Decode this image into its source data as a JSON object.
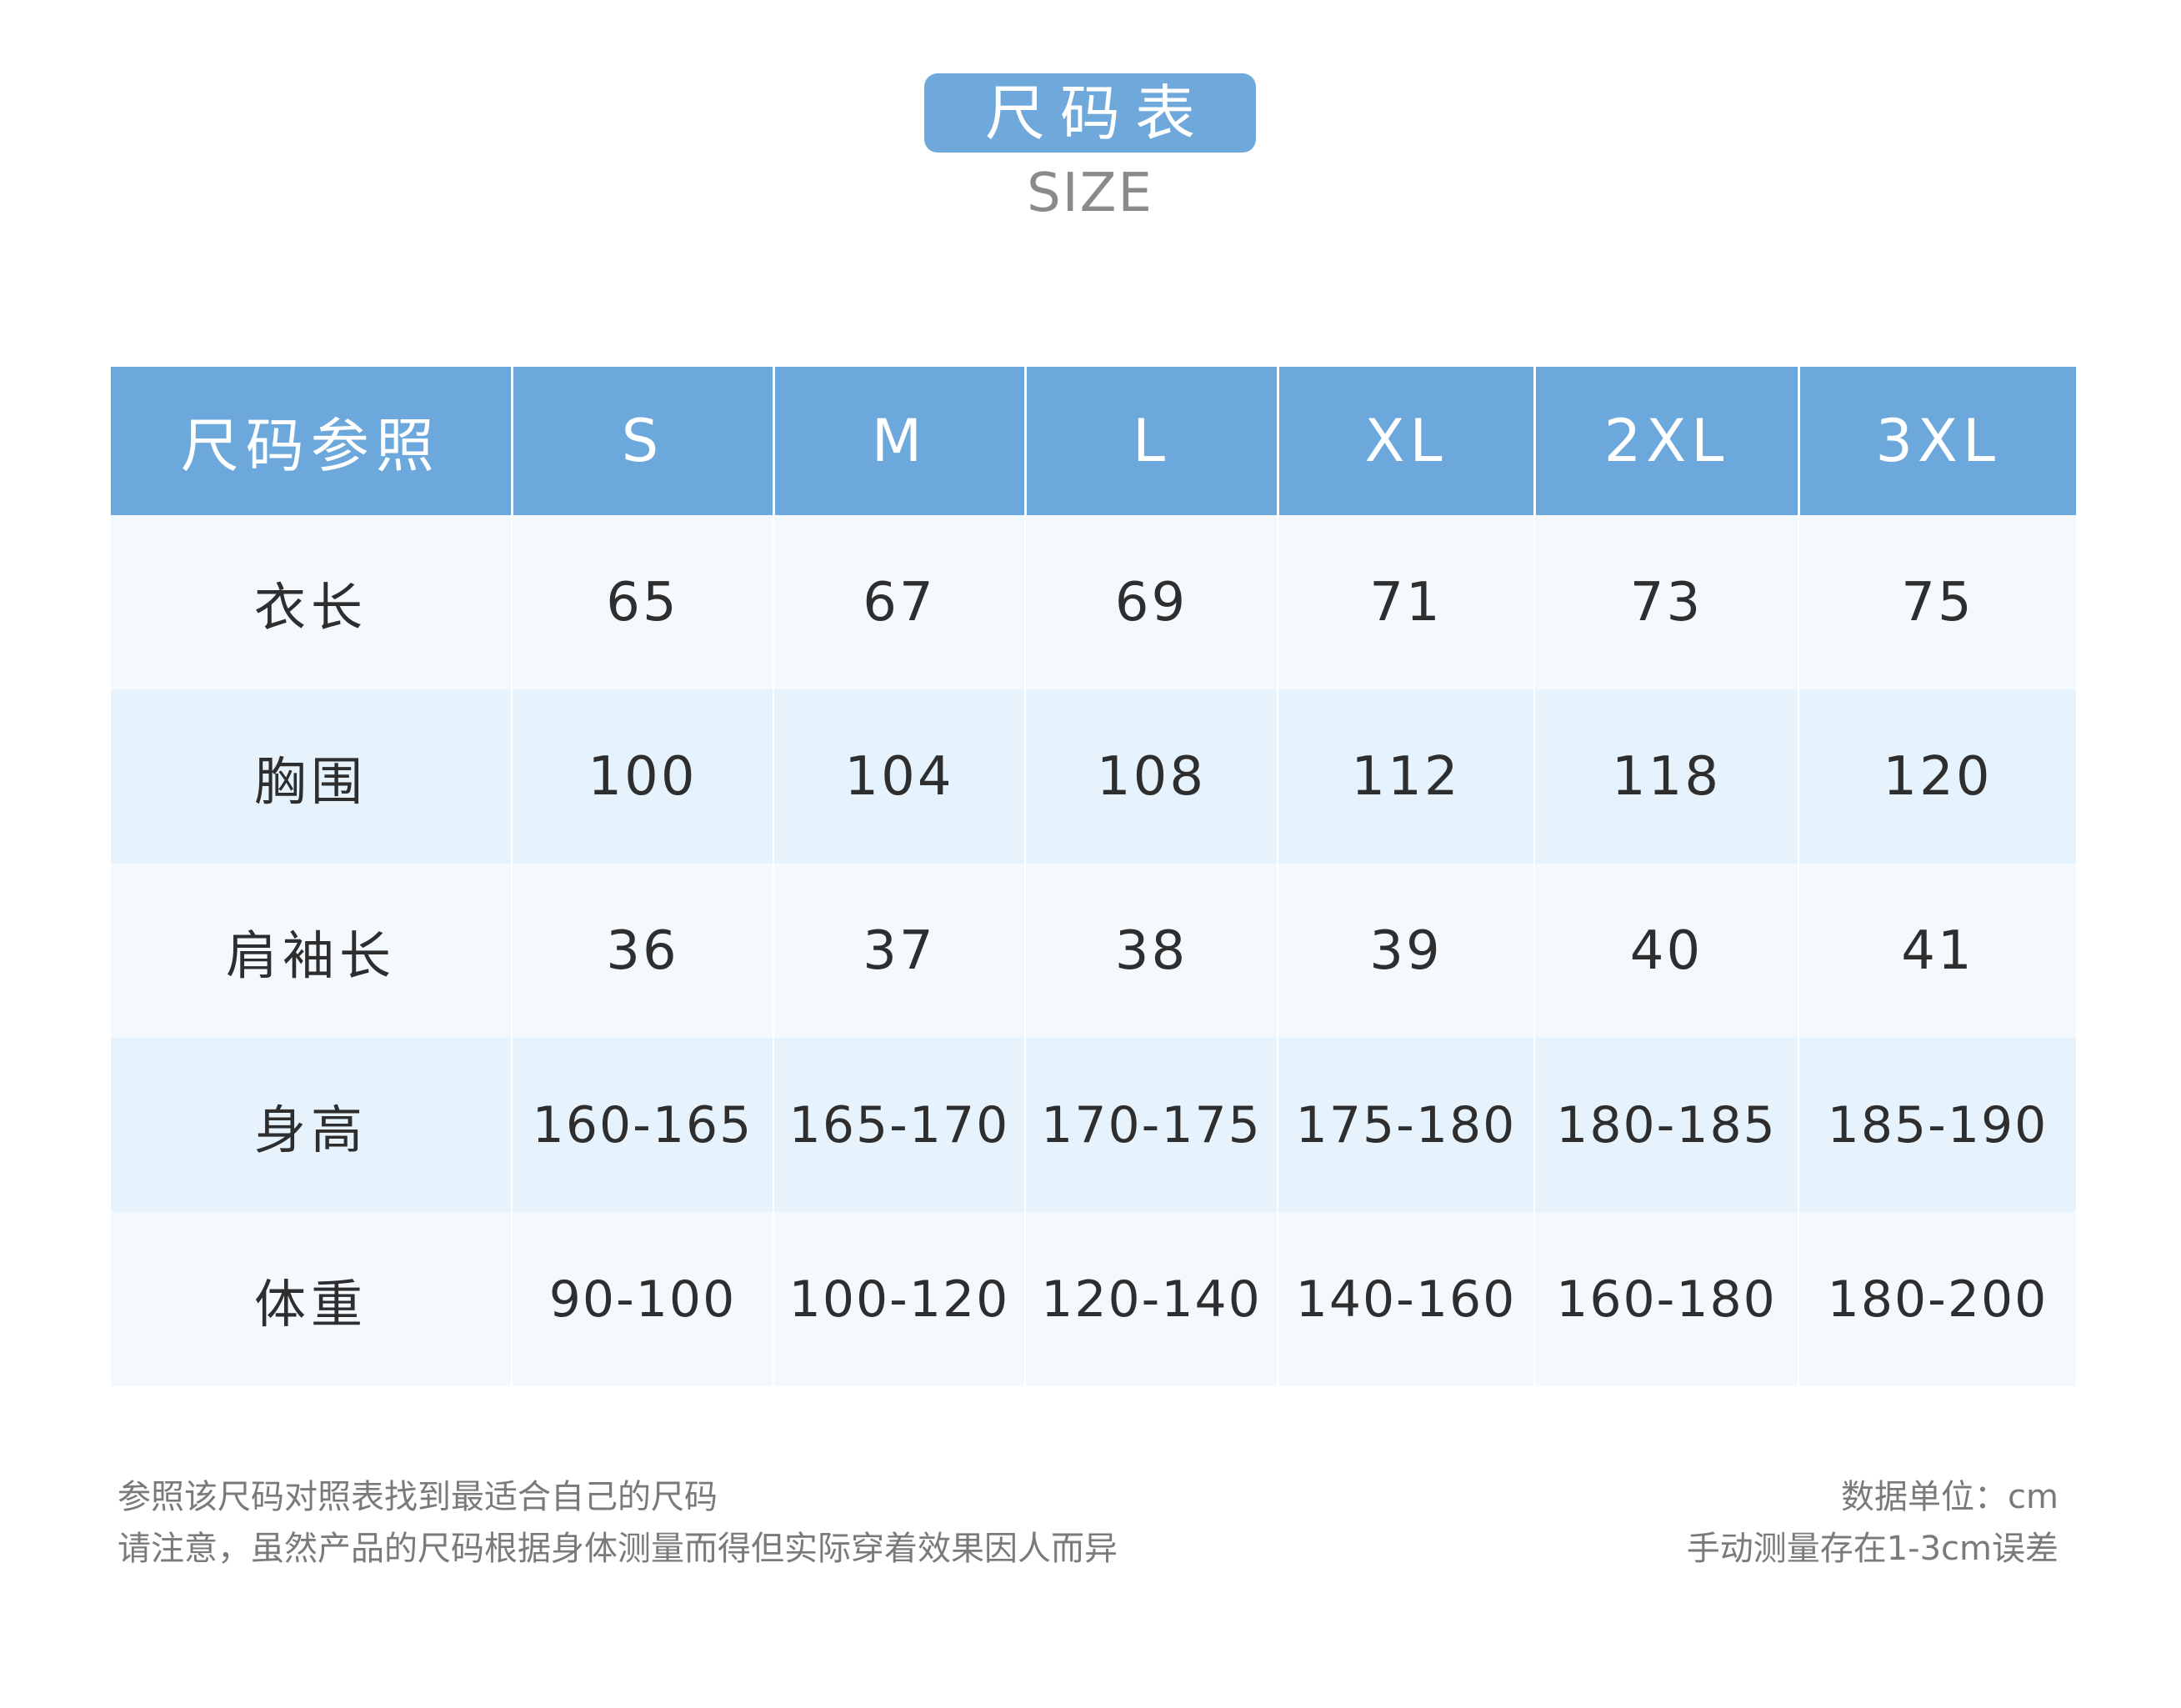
{
  "header": {
    "title": "尺码表",
    "subtitle": "SIZE"
  },
  "table": {
    "corner_label": "尺码参照",
    "sizes": [
      "S",
      "M",
      "L",
      "XL",
      "2XL",
      "3XL"
    ],
    "rows": [
      {
        "label": "衣长",
        "values": [
          "65",
          "67",
          "69",
          "71",
          "73",
          "75"
        ]
      },
      {
        "label": "胸围",
        "values": [
          "100",
          "104",
          "108",
          "112",
          "118",
          "120"
        ]
      },
      {
        "label": "肩袖长",
        "values": [
          "36",
          "37",
          "38",
          "39",
          "40",
          "41"
        ]
      },
      {
        "label": "身高",
        "values": [
          "160-165",
          "165-170",
          "170-175",
          "175-180",
          "180-185",
          "185-190"
        ]
      },
      {
        "label": "体重",
        "values": [
          "90-100",
          "100-120",
          "120-140",
          "140-160",
          "160-180",
          "180-200"
        ]
      }
    ]
  },
  "notes": {
    "left": [
      "参照该尺码对照表找到最适合自己的尺码",
      "请注意，虽然产品的尺码根据身体测量而得但实际穿着效果因人而异"
    ],
    "right": [
      "数据单位：cm",
      "手动测量存在1-3cm误差"
    ]
  },
  "colors": {
    "accent_blue": "#6ca8dc",
    "row_light": "#f4f9fe",
    "row_tint": "#e6f3fc",
    "text_dark": "#2e2e2e",
    "text_gray": "#7a7a7a"
  }
}
